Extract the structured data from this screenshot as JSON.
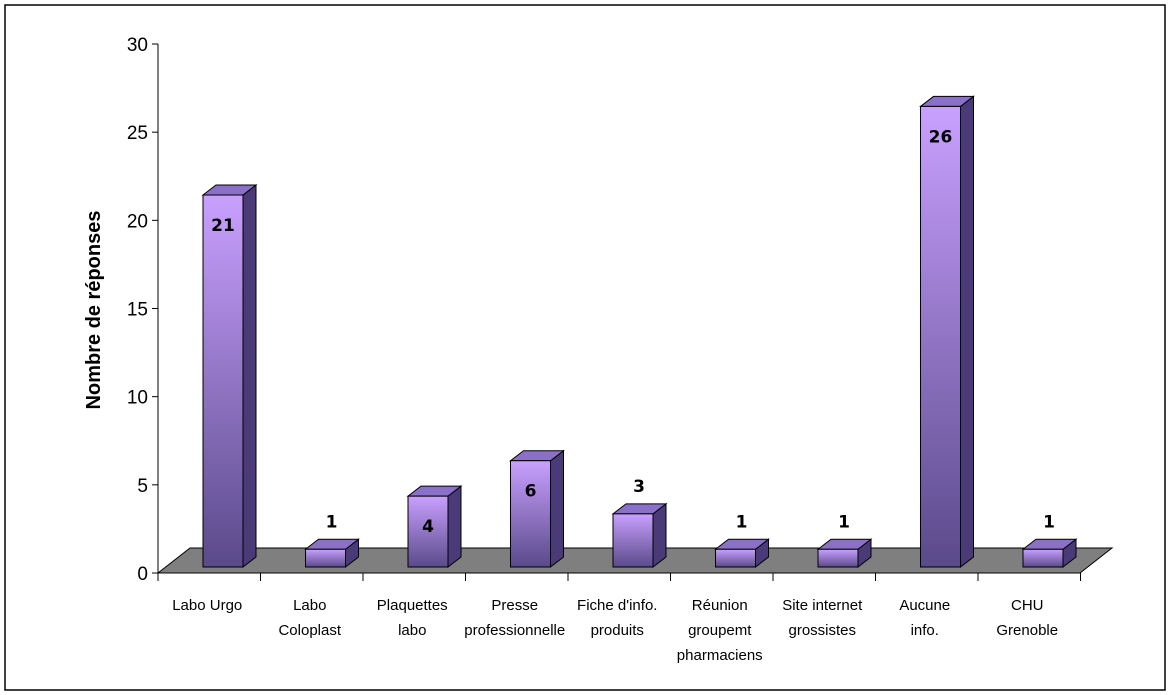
{
  "chart_data": {
    "type": "bar",
    "style": "3d-column",
    "ylabel": "Nombre de réponses",
    "xlabel": "",
    "ylim": [
      0,
      30
    ],
    "yticks": [
      0,
      5,
      10,
      15,
      20,
      25,
      30
    ],
    "categories": [
      [
        "Labo Urgo"
      ],
      [
        "Labo",
        "Coloplast"
      ],
      [
        "Plaquettes",
        "labo"
      ],
      [
        "Presse",
        "professionnelle"
      ],
      [
        "Fiche d'info.",
        "produits"
      ],
      [
        "Réunion",
        "groupemt",
        "pharmaciens"
      ],
      [
        "Site internet",
        "grossistes"
      ],
      [
        "Aucune",
        "info."
      ],
      [
        "CHU",
        "Grenoble"
      ]
    ],
    "values": [
      21,
      1,
      4,
      6,
      3,
      1,
      1,
      26,
      1
    ],
    "data_labels": [
      "21",
      "1",
      "4",
      "6",
      "3",
      "1",
      "1",
      "26",
      "1"
    ],
    "grid": false,
    "legend": "none",
    "colors": {
      "bar_front_top": "#c9a0ff",
      "bar_front_bottom": "#5a4a8a",
      "bar_side": "#4a3a78",
      "bar_top": "#8a70c8",
      "floor": "#7f7f7f",
      "frame": "#000000"
    }
  }
}
